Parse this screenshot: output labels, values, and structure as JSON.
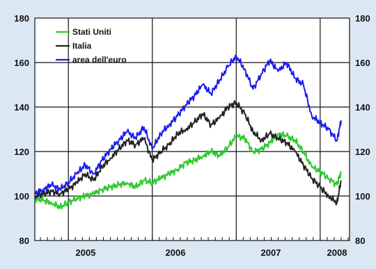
{
  "chart_data": {
    "type": "line",
    "title": "",
    "xlabel": "",
    "ylabel": "",
    "ylim": [
      80,
      180
    ],
    "yticks": [
      80,
      100,
      120,
      140,
      160,
      180
    ],
    "x_tick_labels": [
      "2005",
      "2006",
      "2006",
      "2007",
      "2008"
    ],
    "x_range": [
      2004.6,
      2008.35
    ],
    "year_boundaries": [
      2005.0,
      2006.0,
      2007.0,
      2008.0
    ],
    "grid": "horizontal and year-boundary lines",
    "legend_position": "top-left",
    "dual_y_axis": true,
    "background_color": "#dbe8f3",
    "plot_background_color": "#ffffff",
    "series": [
      {
        "name": "Stati Uniti",
        "color": "#2ec82e",
        "x": [
          2004.6,
          2004.7,
          2004.8,
          2004.9,
          2005.0,
          2005.1,
          2005.2,
          2005.3,
          2005.4,
          2005.5,
          2005.6,
          2005.7,
          2005.8,
          2005.9,
          2006.0,
          2006.1,
          2006.2,
          2006.3,
          2006.4,
          2006.5,
          2006.6,
          2006.7,
          2006.8,
          2006.9,
          2007.0,
          2007.1,
          2007.2,
          2007.3,
          2007.4,
          2007.5,
          2007.6,
          2007.7,
          2007.8,
          2007.9,
          2008.0,
          2008.1,
          2008.2,
          2008.25
        ],
        "y": [
          99,
          98,
          97,
          95,
          97,
          99,
          100,
          101,
          103,
          104,
          105,
          106,
          104,
          107,
          106,
          108,
          110,
          112,
          115,
          116,
          118,
          120,
          118,
          122,
          127,
          126,
          120,
          121,
          124,
          128,
          127,
          125,
          120,
          113,
          111,
          108,
          105,
          111
        ]
      },
      {
        "name": "Italia",
        "color": "#222222",
        "x": [
          2004.6,
          2004.7,
          2004.8,
          2004.9,
          2005.0,
          2005.1,
          2005.2,
          2005.3,
          2005.4,
          2005.5,
          2005.6,
          2005.7,
          2005.8,
          2005.9,
          2006.0,
          2006.1,
          2006.2,
          2006.3,
          2006.4,
          2006.5,
          2006.6,
          2006.7,
          2006.8,
          2006.9,
          2007.0,
          2007.1,
          2007.2,
          2007.3,
          2007.4,
          2007.5,
          2007.6,
          2007.7,
          2007.8,
          2007.9,
          2008.0,
          2008.1,
          2008.2,
          2008.25
        ],
        "y": [
          100,
          101,
          102,
          101,
          103,
          106,
          110,
          107,
          113,
          117,
          121,
          125,
          123,
          126,
          116,
          120,
          123,
          128,
          130,
          133,
          137,
          132,
          135,
          140,
          142,
          137,
          129,
          125,
          128,
          126,
          124,
          120,
          114,
          108,
          104,
          100,
          97,
          107
        ]
      },
      {
        "name": "area dell'euro",
        "color": "#1a1aee",
        "x": [
          2004.6,
          2004.7,
          2004.8,
          2004.9,
          2005.0,
          2005.1,
          2005.2,
          2005.3,
          2005.4,
          2005.5,
          2005.6,
          2005.7,
          2005.8,
          2005.9,
          2006.0,
          2006.1,
          2006.2,
          2006.3,
          2006.4,
          2006.5,
          2006.6,
          2006.7,
          2006.8,
          2006.9,
          2007.0,
          2007.1,
          2007.2,
          2007.3,
          2007.4,
          2007.5,
          2007.6,
          2007.7,
          2007.8,
          2007.9,
          2008.0,
          2008.1,
          2008.2,
          2008.25
        ],
        "y": [
          101,
          103,
          105,
          103,
          106,
          110,
          114,
          110,
          116,
          121,
          125,
          129,
          126,
          131,
          121,
          128,
          132,
          136,
          141,
          145,
          150,
          146,
          152,
          158,
          163,
          157,
          148,
          155,
          161,
          156,
          160,
          153,
          150,
          136,
          133,
          130,
          125,
          134
        ]
      }
    ]
  }
}
